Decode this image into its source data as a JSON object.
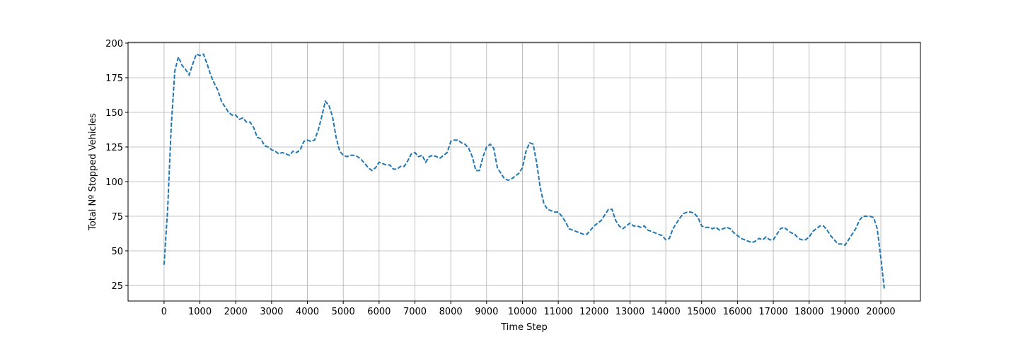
{
  "chart_data": {
    "type": "line",
    "xlabel": "Time Step",
    "ylabel": "Total Nº Stopped Vehicles",
    "x": [
      0,
      100,
      200,
      300,
      400,
      500,
      600,
      700,
      800,
      900,
      1000,
      1100,
      1200,
      1300,
      1400,
      1500,
      1600,
      1700,
      1800,
      1900,
      2000,
      2100,
      2200,
      2300,
      2400,
      2500,
      2600,
      2700,
      2800,
      2900,
      3000,
      3100,
      3200,
      3300,
      3400,
      3500,
      3600,
      3700,
      3800,
      3900,
      4000,
      4100,
      4200,
      4300,
      4400,
      4500,
      4600,
      4700,
      4800,
      4900,
      5000,
      5100,
      5200,
      5300,
      5400,
      5500,
      5600,
      5700,
      5800,
      5900,
      6000,
      6100,
      6200,
      6300,
      6400,
      6500,
      6600,
      6700,
      6800,
      6900,
      7000,
      7100,
      7200,
      7300,
      7400,
      7500,
      7600,
      7700,
      7800,
      7900,
      8000,
      8100,
      8200,
      8300,
      8400,
      8500,
      8600,
      8700,
      8800,
      8900,
      9000,
      9100,
      9200,
      9300,
      9400,
      9500,
      9600,
      9700,
      9800,
      9900,
      10000,
      10100,
      10200,
      10300,
      10400,
      10500,
      10600,
      10700,
      10800,
      10900,
      11000,
      11100,
      11200,
      11300,
      11400,
      11500,
      11600,
      11700,
      11800,
      11900,
      12000,
      12100,
      12200,
      12300,
      12400,
      12500,
      12600,
      12700,
      12800,
      12900,
      13000,
      13100,
      13200,
      13300,
      13400,
      13500,
      13600,
      13700,
      13800,
      13900,
      14000,
      14100,
      14200,
      14300,
      14400,
      14500,
      14600,
      14700,
      14800,
      14900,
      15000,
      15100,
      15200,
      15300,
      15400,
      15500,
      15600,
      15700,
      15800,
      15900,
      16000,
      16100,
      16200,
      16300,
      16400,
      16500,
      16600,
      16700,
      16800,
      16900,
      17000,
      17100,
      17200,
      17300,
      17400,
      17500,
      17600,
      17700,
      17800,
      17900,
      18000,
      18100,
      18200,
      18300,
      18400,
      18500,
      18600,
      18700,
      18800,
      18900,
      19000,
      19100,
      19200,
      19300,
      19400,
      19500,
      19600,
      19700,
      19800,
      19900,
      20000,
      20100
    ],
    "series": [
      {
        "color": "#1f77b4",
        "values": [
          40,
          80,
          140,
          180,
          190,
          184,
          181,
          177,
          185,
          192,
          191,
          192,
          185,
          177,
          171,
          166,
          158,
          154,
          150,
          148,
          148,
          145,
          146,
          143,
          143,
          139,
          132,
          131,
          126,
          125,
          123,
          122,
          120,
          121,
          120,
          119,
          122,
          121,
          123,
          129,
          130,
          129,
          130,
          137,
          147,
          158,
          155,
          147,
          132,
          122,
          119,
          118,
          119,
          119,
          118,
          116,
          113,
          110,
          108,
          110,
          114,
          113,
          112,
          112,
          109,
          109,
          111,
          111,
          115,
          120,
          121,
          118,
          119,
          114,
          118,
          119,
          118,
          117,
          119,
          121,
          129,
          130,
          130,
          128,
          127,
          124,
          118,
          108,
          108,
          118,
          125,
          127,
          124,
          110,
          106,
          102,
          101,
          102,
          104,
          106,
          110,
          122,
          128,
          127,
          113,
          95,
          84,
          80,
          79,
          78,
          78,
          75,
          71,
          66,
          65,
          64,
          63,
          62,
          62,
          65,
          68,
          70,
          72,
          76,
          80,
          80,
          72,
          68,
          66,
          68,
          70,
          68,
          68,
          67,
          68,
          65,
          64,
          63,
          62,
          61,
          58,
          59,
          66,
          70,
          74,
          77,
          78,
          78,
          77,
          74,
          68,
          67,
          67,
          66,
          67,
          65,
          66,
          67,
          66,
          63,
          61,
          59,
          58,
          57,
          56,
          57,
          59,
          58,
          60,
          58,
          58,
          62,
          66,
          67,
          65,
          63,
          62,
          59,
          58,
          58,
          60,
          64,
          66,
          68,
          68,
          65,
          61,
          58,
          55,
          55,
          54,
          58,
          62,
          66,
          72,
          75,
          75,
          75,
          74,
          66,
          45,
          22
        ]
      }
    ],
    "xlim": [
      -1005,
      21105
    ],
    "ylim": [
      13.8,
      200.5
    ],
    "xticks": [
      0,
      1000,
      2000,
      3000,
      4000,
      5000,
      6000,
      7000,
      8000,
      9000,
      10000,
      11000,
      12000,
      13000,
      14000,
      15000,
      16000,
      17000,
      18000,
      19000,
      20000
    ],
    "yticks": [
      25,
      50,
      75,
      100,
      125,
      150,
      175,
      200
    ],
    "grid": true,
    "dashed": true
  }
}
